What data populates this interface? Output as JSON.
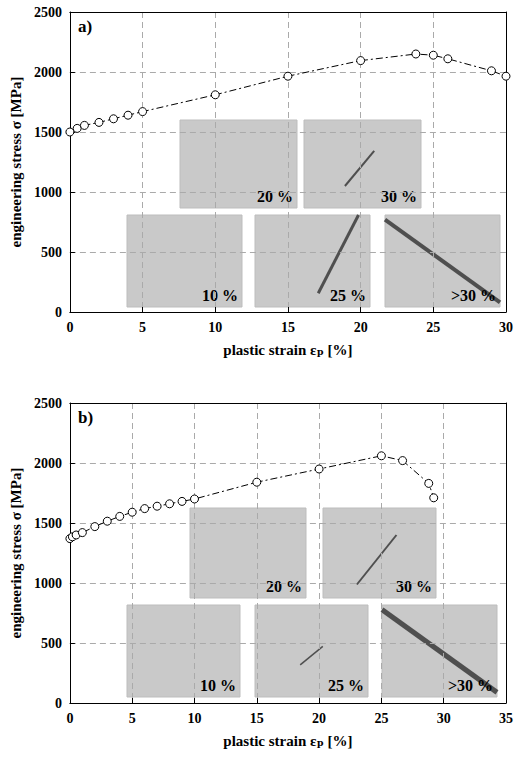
{
  "chart_data": [
    {
      "type": "line",
      "label": "a)",
      "x_label": "plastic strain εₚ [%]",
      "y_label": "engineering stress σ [MPa]",
      "x": [
        0,
        0.5,
        1,
        2,
        3,
        4,
        5,
        10,
        15,
        20,
        23.8,
        25,
        26,
        29,
        30
      ],
      "series": [
        {
          "values": [
            1500,
            1530,
            1555,
            1580,
            1610,
            1640,
            1670,
            1810,
            1965,
            2095,
            2150,
            2140,
            2110,
            2010,
            1965
          ],
          "color": "#000000",
          "marker": "circle",
          "line_style": "dashdot"
        }
      ],
      "xlim": [
        0,
        30
      ],
      "xticks": [
        0,
        5,
        10,
        15,
        20,
        25,
        30
      ],
      "ylim": [
        0,
        2500
      ],
      "yticks": [
        0,
        500,
        1000,
        1500,
        2000,
        2500
      ],
      "grid": true,
      "annotations": [
        "20 %",
        "30 %",
        "10 %",
        "25 %",
        ">30 %"
      ]
    },
    {
      "type": "line",
      "label": "b)",
      "x_label": "plastic strain εₚ [%]",
      "y_label": "engineering stress σ [MPa]",
      "x": [
        0,
        0.2,
        0.5,
        1,
        2,
        3,
        4,
        5,
        6,
        7,
        8,
        9,
        10,
        15,
        20,
        25,
        26.7,
        28.8,
        29.2
      ],
      "series": [
        {
          "values": [
            1370,
            1385,
            1400,
            1420,
            1470,
            1515,
            1555,
            1590,
            1620,
            1640,
            1660,
            1680,
            1700,
            1840,
            1950,
            2060,
            2020,
            1830,
            1710
          ],
          "color": "#000000",
          "marker": "circle",
          "line_style": "dashdot"
        }
      ],
      "xlim": [
        0,
        35
      ],
      "xticks": [
        0,
        5,
        10,
        15,
        20,
        25,
        30,
        35
      ],
      "ylim": [
        0,
        2500
      ],
      "yticks": [
        0,
        500,
        1000,
        1500,
        2000,
        2500
      ],
      "grid": true,
      "annotations": [
        "20 %",
        "30 %",
        "10 %",
        "25 %",
        ">30 %"
      ]
    }
  ]
}
